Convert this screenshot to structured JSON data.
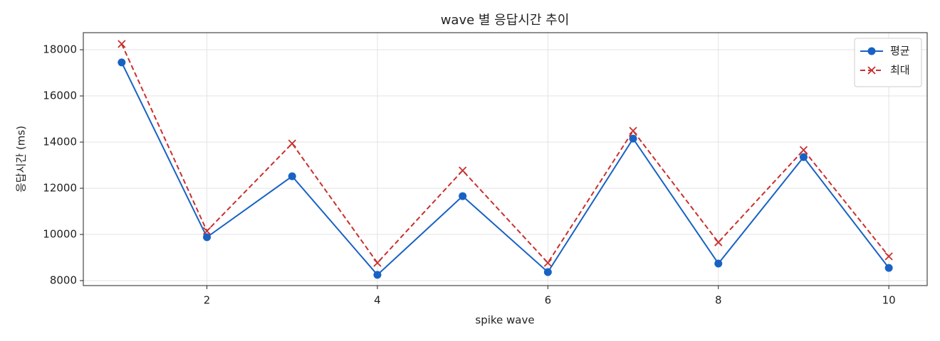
{
  "chart_data": {
    "type": "line",
    "title": "wave 별 응답시간 추이",
    "x_label": "spike wave",
    "y_label": "응답시간 (ms)",
    "x": [
      1,
      2,
      3,
      4,
      5,
      6,
      7,
      8,
      9,
      10
    ],
    "series": [
      {
        "name": "평균",
        "color": "#1862c4",
        "marker": "circle",
        "dash": "solid",
        "values": [
          17450,
          9880,
          12520,
          8250,
          11660,
          8370,
          14150,
          8740,
          13350,
          8550
        ]
      },
      {
        "name": "최대",
        "color": "#c8302e",
        "marker": "x",
        "dash": "dashed",
        "values": [
          18250,
          10150,
          13940,
          8770,
          12770,
          8770,
          14490,
          9660,
          13660,
          9050
        ]
      }
    ],
    "xlim": [
      0.55,
      10.45
    ],
    "xticks": [
      2,
      4,
      6,
      8,
      10
    ],
    "ylim": [
      7785,
      18740
    ],
    "yticks": [
      8000,
      10000,
      12000,
      14000,
      16000,
      18000
    ],
    "grid": true,
    "legend": "upper right"
  }
}
